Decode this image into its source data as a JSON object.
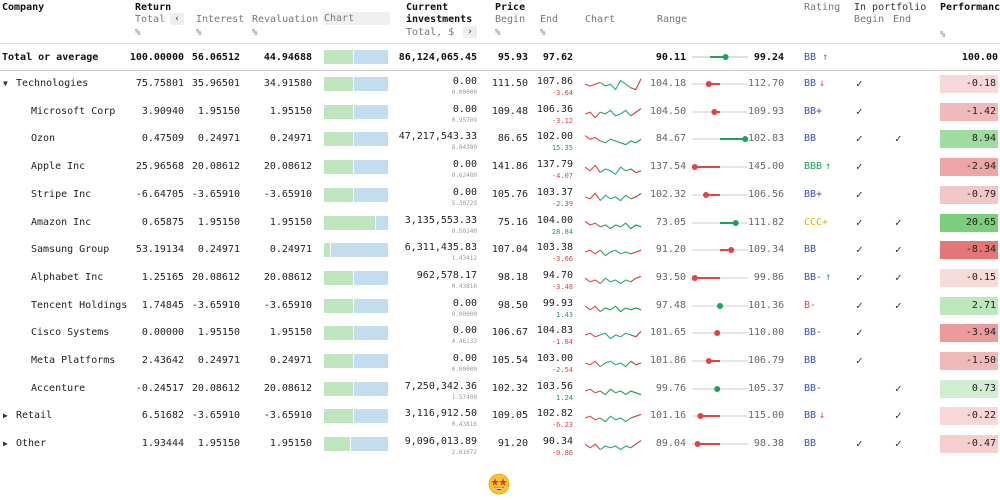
{
  "columns": {
    "company": "Company",
    "return": "Return",
    "total": "Total",
    "interest": "Interest",
    "revaluation": "Revaluation",
    "chart": "Chart",
    "current_investments_1": "Current",
    "current_investments_2": "investments",
    "total_dollar": "Total, $",
    "price": "Price",
    "begin": "Begin",
    "end": "End",
    "price_chart": "Chart",
    "range": "Range",
    "rating": "Rating",
    "in_portfolio": "In portfolio",
    "ip_begin": "Begin",
    "ip_end": "End",
    "performance": "Performance",
    "pct": "%"
  },
  "total": {
    "label": "Total or average",
    "total": "100.00000",
    "interest": "56.06512",
    "revaluation": "44.94688",
    "current": "86,124,065.45",
    "begin": "95.93",
    "end": "97.62",
    "range_min": "90.11",
    "range_max": "99.24",
    "range_pos": 0.6,
    "rating": "BB",
    "rating_arrow": "↑",
    "rating_color": "#3a4fbf",
    "arrow_color": "#21a05d",
    "performance": "100.00",
    "bar": 0.45
  },
  "rows": [
    {
      "name": "Technologies",
      "group": true,
      "expanded": true,
      "total": "75.75801",
      "interest": "35.96501",
      "revaluation": "34.91580",
      "bar": 0.45,
      "current": "0.00",
      "current_sub": "0.00000",
      "begin": "111.50",
      "end": "107.86",
      "change": "-3.64",
      "up": false,
      "spark": [
        6,
        5,
        6,
        7,
        5,
        6,
        3,
        8,
        6,
        4,
        3,
        9
      ],
      "range_min": "104.18",
      "range_max": "112.70",
      "range_pos": 0.3,
      "range_dir": "neg",
      "rating": "BB",
      "rating_arrow": "↓",
      "rating_color": "#3a4fbf",
      "arrow_color": "#e04444",
      "ip_begin": true,
      "ip_end": false,
      "performance": "-0.18",
      "perf": -0.18
    },
    {
      "name": "Microsoft Corp",
      "total": "3.90940",
      "interest": "1.95150",
      "revaluation": "1.95150",
      "bar": 0.45,
      "current": "0.00",
      "current_sub": "0.95709",
      "begin": "109.48",
      "end": "106.36",
      "change": "-3.12",
      "up": false,
      "spark": [
        5,
        6,
        3,
        6,
        5,
        7,
        4,
        5,
        7,
        4,
        6,
        8
      ],
      "range_min": "104.50",
      "range_max": "109.93",
      "range_pos": 0.4,
      "range_dir": "neg",
      "rating": "BB+",
      "rating_arrow": "",
      "rating_color": "#3a4fbf",
      "arrow_color": "",
      "ip_begin": true,
      "ip_end": false,
      "performance": "-1.42",
      "perf": -1.42
    },
    {
      "name": "Ozon",
      "total": "0.47509",
      "interest": "0.24971",
      "revaluation": "0.24971",
      "bar": 0.45,
      "current": "47,217,543.33",
      "current_sub": "8.84380",
      "begin": "86.65",
      "end": "102.00",
      "change": "15.35",
      "up": true,
      "spark": [
        8,
        6,
        7,
        5,
        4,
        6,
        5,
        4,
        3,
        5,
        4,
        6
      ],
      "range_min": "84.67",
      "range_max": "102.83",
      "range_pos": 0.95,
      "range_dir": "pos",
      "rating": "BB",
      "rating_arrow": "",
      "rating_color": "#3a4fbf",
      "arrow_color": "",
      "ip_begin": true,
      "ip_end": true,
      "performance": "8.94",
      "perf": 8.94
    },
    {
      "name": "Apple Inc",
      "total": "25.96568",
      "interest": "20.08612",
      "revaluation": "20.08612",
      "bar": 0.45,
      "current": "0.00",
      "current_sub": "0.62480",
      "begin": "141.86",
      "end": "137.79",
      "change": "-4.07",
      "up": false,
      "spark": [
        6,
        4,
        7,
        3,
        5,
        4,
        2,
        6,
        4,
        5,
        3,
        4
      ],
      "range_min": "137.54",
      "range_max": "145.00",
      "range_pos": 0.05,
      "range_dir": "neg",
      "rating": "BBB",
      "rating_arrow": "↑",
      "rating_color": "#21a05d",
      "arrow_color": "#21a05d",
      "ip_begin": true,
      "ip_end": false,
      "performance": "-2.94",
      "perf": -2.94
    },
    {
      "name": "Stripe Inc",
      "total": "-6.64705",
      "interest": "-3.65910",
      "revaluation": "-3.65910",
      "bar": 0.45,
      "current": "0.00",
      "current_sub": "5.30729",
      "begin": "105.76",
      "end": "103.37",
      "change": "-2.39",
      "up": false,
      "spark": [
        5,
        4,
        7,
        3,
        6,
        4,
        5,
        3,
        6,
        4,
        5,
        7
      ],
      "range_min": "102.32",
      "range_max": "106.56",
      "range_pos": 0.25,
      "range_dir": "neg",
      "rating": "BB+",
      "rating_arrow": "",
      "rating_color": "#3a4fbf",
      "arrow_color": "",
      "ip_begin": true,
      "ip_end": false,
      "performance": "-0.79",
      "perf": -0.79
    },
    {
      "name": "Amazon Inc",
      "total": "0.65875",
      "interest": "1.95150",
      "revaluation": "1.95150",
      "bar": 0.8,
      "current": "3,135,553.33",
      "current_sub": "0.50240",
      "begin": "75.16",
      "end": "104.00",
      "change": "28.84",
      "up": true,
      "spark": [
        7,
        5,
        6,
        4,
        5,
        3,
        5,
        4,
        6,
        3,
        5,
        4
      ],
      "range_min": "73.05",
      "range_max": "111.82",
      "range_pos": 0.78,
      "range_dir": "pos",
      "rating": "CCC+",
      "rating_arrow": "",
      "rating_color": "#e0b000",
      "arrow_color": "",
      "ip_begin": true,
      "ip_end": true,
      "performance": "20.65",
      "perf": 20.65
    },
    {
      "name": "Samsung Group",
      "total": "53.19134",
      "interest": "0.24971",
      "revaluation": "0.24971",
      "bar": 0.1,
      "current": "6,311,435.83",
      "current_sub": "1.43412",
      "begin": "107.04",
      "end": "103.38",
      "change": "-3.66",
      "up": false,
      "spark": [
        5,
        6,
        4,
        6,
        3,
        5,
        6,
        4,
        5,
        4,
        5,
        6
      ],
      "range_min": "91.20",
      "range_max": "109.34",
      "range_pos": 0.7,
      "range_dir": "neg",
      "rating": "BB",
      "rating_arrow": "",
      "rating_color": "#3a4fbf",
      "arrow_color": "",
      "ip_begin": true,
      "ip_end": true,
      "performance": "-8.34",
      "perf": -8.34
    },
    {
      "name": "Alphabet Inc",
      "total": "1.25165",
      "interest": "20.08612",
      "revaluation": "20.08612",
      "bar": 0.45,
      "current": "962,578.17",
      "current_sub": "0.43816",
      "begin": "98.18",
      "end": "94.70",
      "change": "-3.48",
      "up": false,
      "spark": [
        6,
        4,
        5,
        3,
        6,
        4,
        5,
        3,
        5,
        4,
        6,
        7
      ],
      "range_min": "93.50",
      "range_max": "99.86",
      "range_pos": 0.05,
      "range_dir": "neg",
      "rating": "BB-",
      "rating_arrow": "↑",
      "rating_color": "#3a4fbf",
      "arrow_color": "#21a05d",
      "ip_begin": true,
      "ip_end": true,
      "performance": "-0.15",
      "perf": -0.15
    },
    {
      "name": "Tencent Holdings",
      "total": "1.74845",
      "interest": "-3.65910",
      "revaluation": "-3.65910",
      "bar": 0.45,
      "current": "0.00",
      "current_sub": "0.00000",
      "begin": "98.50",
      "end": "99.93",
      "change": "1.43",
      "up": true,
      "spark": [
        6,
        4,
        6,
        3,
        5,
        4,
        6,
        3,
        5,
        4,
        5,
        4
      ],
      "range_min": "97.48",
      "range_max": "101.36",
      "range_pos": 0.5,
      "range_dir": "pos",
      "rating": "B-",
      "rating_arrow": "",
      "rating_color": "#e04444",
      "arrow_color": "",
      "ip_begin": true,
      "ip_end": true,
      "performance": "2.71",
      "perf": 2.71
    },
    {
      "name": "Cisco Systems",
      "total": "0.00000",
      "interest": "1.95150",
      "revaluation": "1.95150",
      "bar": 0.45,
      "current": "0.00",
      "current_sub": "4.46133",
      "begin": "106.67",
      "end": "104.83",
      "change": "-1.84",
      "up": false,
      "spark": [
        5,
        6,
        4,
        5,
        6,
        3,
        5,
        4,
        6,
        5,
        4,
        7
      ],
      "range_min": "101.65",
      "range_max": "110.00",
      "range_pos": 0.45,
      "range_dir": "neg",
      "rating": "BB-",
      "rating_arrow": "",
      "rating_color": "#3a4fbf",
      "arrow_color": "",
      "ip_begin": true,
      "ip_end": false,
      "performance": "-3.94",
      "perf": -3.94
    },
    {
      "name": "Meta Platforms",
      "total": "2.43642",
      "interest": "0.24971",
      "revaluation": "0.24971",
      "bar": 0.45,
      "current": "0.00",
      "current_sub": "0.00000",
      "begin": "105.54",
      "end": "103.00",
      "change": "-2.54",
      "up": false,
      "spark": [
        5,
        4,
        6,
        3,
        5,
        6,
        4,
        5,
        3,
        6,
        4,
        5
      ],
      "range_min": "101.86",
      "range_max": "106.79",
      "range_pos": 0.3,
      "range_dir": "neg",
      "rating": "BB",
      "rating_arrow": "",
      "rating_color": "#3a4fbf",
      "arrow_color": "",
      "ip_begin": true,
      "ip_end": false,
      "performance": "-1.50",
      "perf": -1.5
    },
    {
      "name": "Accenture",
      "total": "-0.24517",
      "interest": "20.08612",
      "revaluation": "20.08612",
      "bar": 0.45,
      "current": "7,250,342.36",
      "current_sub": "1.57408",
      "begin": "102.32",
      "end": "103.56",
      "change": "1.24",
      "up": true,
      "spark": [
        5,
        6,
        4,
        5,
        3,
        6,
        4,
        5,
        3,
        5,
        4,
        3
      ],
      "range_min": "99.76",
      "range_max": "105.37",
      "range_pos": 0.45,
      "range_dir": "pos",
      "rating": "BB-",
      "rating_arrow": "",
      "rating_color": "#3a4fbf",
      "arrow_color": "",
      "ip_begin": false,
      "ip_end": true,
      "performance": "0.73",
      "perf": 0.73
    },
    {
      "name": "Retail",
      "group": true,
      "expanded": false,
      "total": "6.51682",
      "interest": "-3.65910",
      "revaluation": "-3.65910",
      "bar": 0.45,
      "current": "3,116,912.50",
      "current_sub": "0.43816",
      "begin": "109.05",
      "end": "102.82",
      "change": "-6.23",
      "up": false,
      "spark": [
        5,
        6,
        4,
        5,
        3,
        6,
        4,
        5,
        3,
        5,
        6,
        7
      ],
      "range_min": "101.16",
      "range_max": "115.00",
      "range_pos": 0.15,
      "range_dir": "neg",
      "rating": "BB",
      "rating_arrow": "↓",
      "rating_color": "#3a4fbf",
      "arrow_color": "#e04444",
      "ip_begin": false,
      "ip_end": true,
      "performance": "-0.22",
      "perf": -0.22
    },
    {
      "name": "Other",
      "group": true,
      "expanded": false,
      "total": "1.93444",
      "interest": "1.95150",
      "revaluation": "1.95150",
      "bar": 0.4,
      "current": "9,096,013.89",
      "current_sub": "2.01672",
      "begin": "91.20",
      "end": "90.34",
      "change": "-0.86",
      "up": false,
      "spark": [
        6,
        4,
        6,
        3,
        5,
        4,
        5,
        3,
        5,
        4,
        6,
        8
      ],
      "range_min": "89.04",
      "range_max": "98.38",
      "range_pos": 0.1,
      "range_dir": "neg",
      "rating": "BB",
      "rating_arrow": "",
      "rating_color": "#3a4fbf",
      "arrow_color": "",
      "ip_begin": true,
      "ip_end": true,
      "performance": "-0.47",
      "perf": -0.47
    }
  ],
  "footer_icon": "star-struck-emoji",
  "colors": {
    "pos": "#21a05d",
    "neg": "#e04444",
    "bar_green": "#bfe5bf",
    "bar_blue": "#c3dcee",
    "perf_pos": "#4fbf4f",
    "perf_neg": "#d94a4a"
  }
}
